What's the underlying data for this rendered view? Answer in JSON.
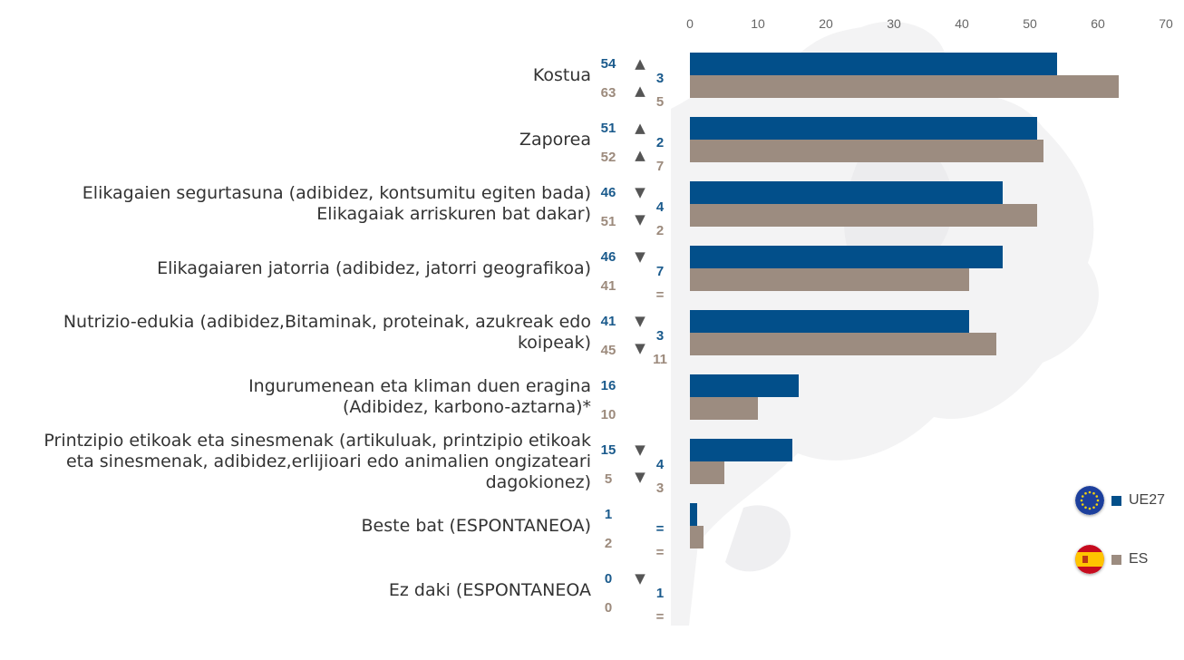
{
  "colors": {
    "eu": "#024f8a",
    "es": "#9c8c80",
    "eu_text": "#1a5a8c",
    "es_text": "#9c8a7c"
  },
  "legend": [
    {
      "label": "UE27",
      "flag": "eu-flag-icon",
      "color": "#024f8a"
    },
    {
      "label": "ES",
      "flag": "spain-flag-icon",
      "color": "#9c8c80"
    }
  ],
  "chart_data": {
    "type": "bar",
    "orientation": "horizontal",
    "xlim": [
      0,
      70
    ],
    "xticks": [
      "0",
      "10",
      "20",
      "30",
      "40",
      "50",
      "60",
      "70"
    ],
    "grid": false,
    "legend_position": "bottom-right",
    "categories": [
      {
        "label_lines": [
          "Kostua"
        ],
        "eu": 54,
        "es": 63,
        "eu_arrow": "▲",
        "es_arrow": "▲",
        "eu_change": "3",
        "es_change": "5"
      },
      {
        "label_lines": [
          "Zaporea"
        ],
        "eu": 51,
        "es": 52,
        "eu_arrow": "▲",
        "es_arrow": "▲",
        "eu_change": "2",
        "es_change": "7"
      },
      {
        "label_lines": [
          "Elikagaien segurtasuna (adibidez, kontsumitu egiten bada)",
          "Elikagaiak arriskuren bat dakar)"
        ],
        "eu": 46,
        "es": 51,
        "eu_arrow": "▼",
        "es_arrow": "▼",
        "eu_change": "4",
        "es_change": "2"
      },
      {
        "label_lines": [
          "Elikagaiaren jatorria (adibidez, jatorri geografikoa)"
        ],
        "eu": 46,
        "es": 41,
        "eu_arrow": "▼",
        "es_arrow": "",
        "eu_change": "7",
        "es_change": "="
      },
      {
        "label_lines": [
          "Nutrizio-edukia (adibidez,Bitaminak, proteinak, azukreak edo",
          "koipeak)"
        ],
        "eu": 41,
        "es": 45,
        "eu_arrow": "▼",
        "es_arrow": "▼",
        "eu_change": "3",
        "es_change": "11"
      },
      {
        "label_lines": [
          "Ingurumenean eta kliman duen eragina",
          "(Adibidez, karbono-aztarna)*"
        ],
        "eu": 16,
        "es": 10,
        "eu_arrow": "",
        "es_arrow": "",
        "eu_change": "",
        "es_change": ""
      },
      {
        "label_lines": [
          "Printzipio etikoak eta sinesmenak (artikuluak, printzipio etikoak",
          "eta sinesmenak, adibidez,erlijioari edo animalien ongizateari",
          "dagokionez)"
        ],
        "eu": 15,
        "es": 5,
        "eu_arrow": "▼",
        "es_arrow": "▼",
        "eu_change": "4",
        "es_change": "3"
      },
      {
        "label_lines": [
          "Beste bat (ESPONTANEOA)"
        ],
        "eu": 1,
        "es": 2,
        "eu_arrow": "",
        "es_arrow": "",
        "eu_change": "=",
        "es_change": "="
      },
      {
        "label_lines": [
          "Ez daki (ESPONTANEOA"
        ],
        "eu": 0,
        "es": 0,
        "eu_arrow": "▼",
        "es_arrow": "",
        "eu_change": "1",
        "es_change": "="
      }
    ]
  }
}
